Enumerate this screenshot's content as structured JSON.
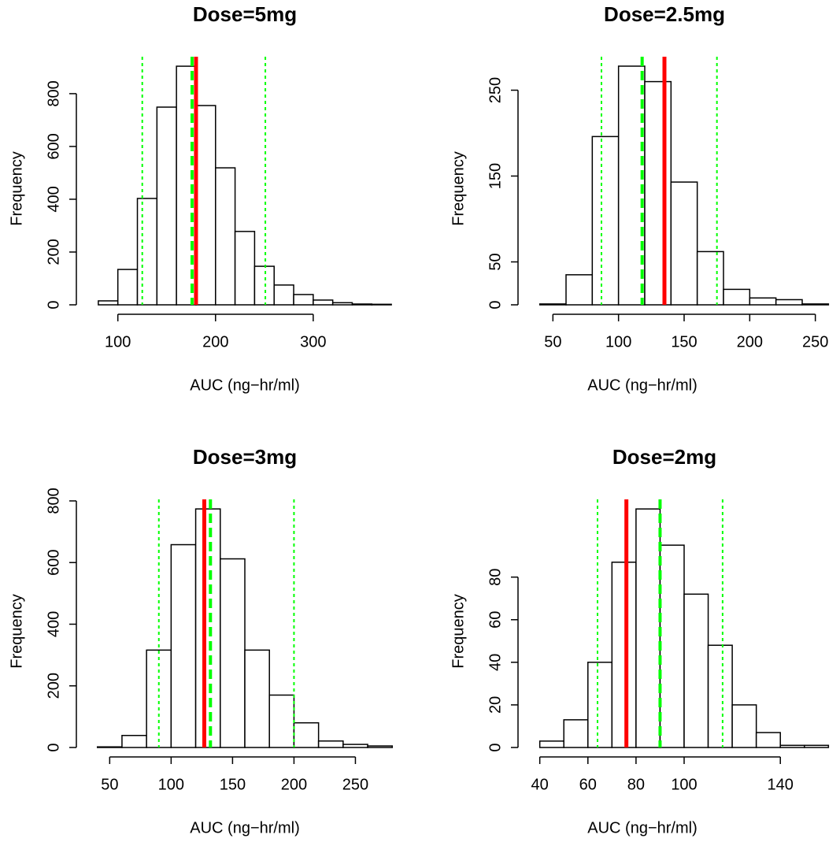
{
  "chart_data": [
    {
      "type": "histogram",
      "title": "Dose=5mg",
      "xlabel": "AUC (ng−hr/ml)",
      "ylabel": "Frequency",
      "color": "#ffffff",
      "bins": [
        80,
        100,
        120,
        140,
        160,
        180,
        200,
        220,
        240,
        260,
        280,
        300,
        320,
        340,
        360,
        380
      ],
      "counts": [
        15,
        134,
        403,
        749,
        904,
        755,
        519,
        278,
        146,
        75,
        39,
        18,
        8,
        3,
        2
      ],
      "xlim": [
        68,
        392
      ],
      "ylim": [
        0,
        940
      ],
      "xticks": [
        100,
        200,
        300
      ],
      "yticks": [
        0,
        200,
        400,
        600,
        800
      ],
      "vlines": [
        {
          "x": 125,
          "color": "#00ff00",
          "style": "dotted"
        },
        {
          "x": 251,
          "color": "#00ff00",
          "style": "dotted"
        },
        {
          "x": 180,
          "color": "#ff0000",
          "style": "solid"
        },
        {
          "x": 176,
          "color": "#00ff00",
          "style": "dashed"
        }
      ]
    },
    {
      "type": "histogram",
      "title": "Dose=2.5mg",
      "xlabel": "AUC (ng−hr/ml)",
      "ylabel": "Frequency",
      "color": "#ffffff",
      "bins": [
        40,
        60,
        80,
        100,
        120,
        140,
        160,
        180,
        200,
        220,
        240,
        260
      ],
      "counts": [
        1,
        35,
        196,
        278,
        260,
        143,
        62,
        18,
        8,
        6,
        1
      ],
      "xlim": [
        31.2,
        268.8
      ],
      "ylim": [
        0,
        289
      ],
      "xticks": [
        50,
        100,
        150,
        200,
        250
      ],
      "yticks": [
        0,
        50,
        150,
        250
      ],
      "vlines": [
        {
          "x": 87,
          "color": "#00ff00",
          "style": "dotted"
        },
        {
          "x": 175,
          "color": "#00ff00",
          "style": "dotted"
        },
        {
          "x": 135,
          "color": "#ff0000",
          "style": "solid"
        },
        {
          "x": 118,
          "color": "#00ff00",
          "style": "dashed"
        }
      ]
    },
    {
      "type": "histogram",
      "title": "Dose=3mg",
      "xlabel": "AUC (ng−hr/ml)",
      "ylabel": "Frequency",
      "color": "#ffffff",
      "bins": [
        40,
        60,
        80,
        100,
        120,
        140,
        160,
        180,
        200,
        220,
        240,
        260,
        280
      ],
      "counts": [
        2,
        39,
        316,
        658,
        774,
        612,
        316,
        170,
        80,
        21,
        10,
        5
      ],
      "xlim": [
        31.2,
        288.8
      ],
      "ylim": [
        0,
        805
      ],
      "xticks": [
        50,
        100,
        150,
        200,
        250
      ],
      "yticks": [
        0,
        200,
        400,
        600,
        800
      ],
      "vlines": [
        {
          "x": 90,
          "color": "#00ff00",
          "style": "dotted"
        },
        {
          "x": 200,
          "color": "#00ff00",
          "style": "dotted"
        },
        {
          "x": 127,
          "color": "#ff0000",
          "style": "solid"
        },
        {
          "x": 132,
          "color": "#00ff00",
          "style": "dashed"
        }
      ]
    },
    {
      "type": "histogram",
      "title": "Dose=2mg",
      "xlabel": "AUC (ng−hr/ml)",
      "ylabel": "Frequency",
      "color": "#ffffff",
      "bins": [
        40,
        50,
        60,
        70,
        80,
        90,
        100,
        110,
        120,
        130,
        140,
        150,
        160
      ],
      "counts": [
        3,
        13,
        40,
        87,
        112,
        95,
        72,
        48,
        20,
        7,
        1,
        1
      ],
      "xlim": [
        35.2,
        164.8
      ],
      "ylim": [
        0,
        116.5
      ],
      "xticks": [
        40,
        60,
        80,
        100,
        140
      ],
      "yticks": [
        0,
        20,
        40,
        60,
        80
      ],
      "vlines": [
        {
          "x": 64,
          "color": "#00ff00",
          "style": "dotted"
        },
        {
          "x": 116,
          "color": "#00ff00",
          "style": "dotted"
        },
        {
          "x": 76,
          "color": "#ff0000",
          "style": "solid"
        },
        {
          "x": 90,
          "color": "#00ff00",
          "style": "dashed"
        }
      ]
    }
  ]
}
